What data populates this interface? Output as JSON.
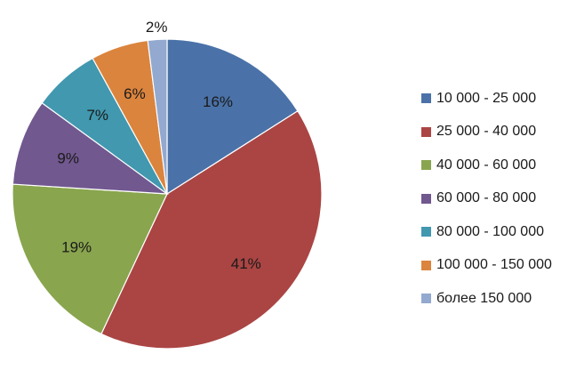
{
  "chart_data": {
    "type": "pie",
    "title": "",
    "legend_position": "right",
    "slices": [
      {
        "name": "10 000 - 25 000",
        "value": 16,
        "label": "16%",
        "color": "#4A72A8"
      },
      {
        "name": "25 000 - 40 000",
        "value": 41,
        "label": "41%",
        "color": "#AA4543"
      },
      {
        "name": "40 000 - 60 000",
        "value": 19,
        "label": "19%",
        "color": "#89A54E"
      },
      {
        "name": "60 000 - 80 000",
        "value": 9,
        "label": "9%",
        "color": "#71588F"
      },
      {
        "name": "80 000 - 100 000",
        "value": 7,
        "label": "7%",
        "color": "#4198AF"
      },
      {
        "name": "100 000 - 150 000",
        "value": 6,
        "label": "6%",
        "color": "#DB843D"
      },
      {
        "name": "более 150 000",
        "value": 2,
        "label": "2%",
        "color": "#93A9CF"
      }
    ]
  }
}
